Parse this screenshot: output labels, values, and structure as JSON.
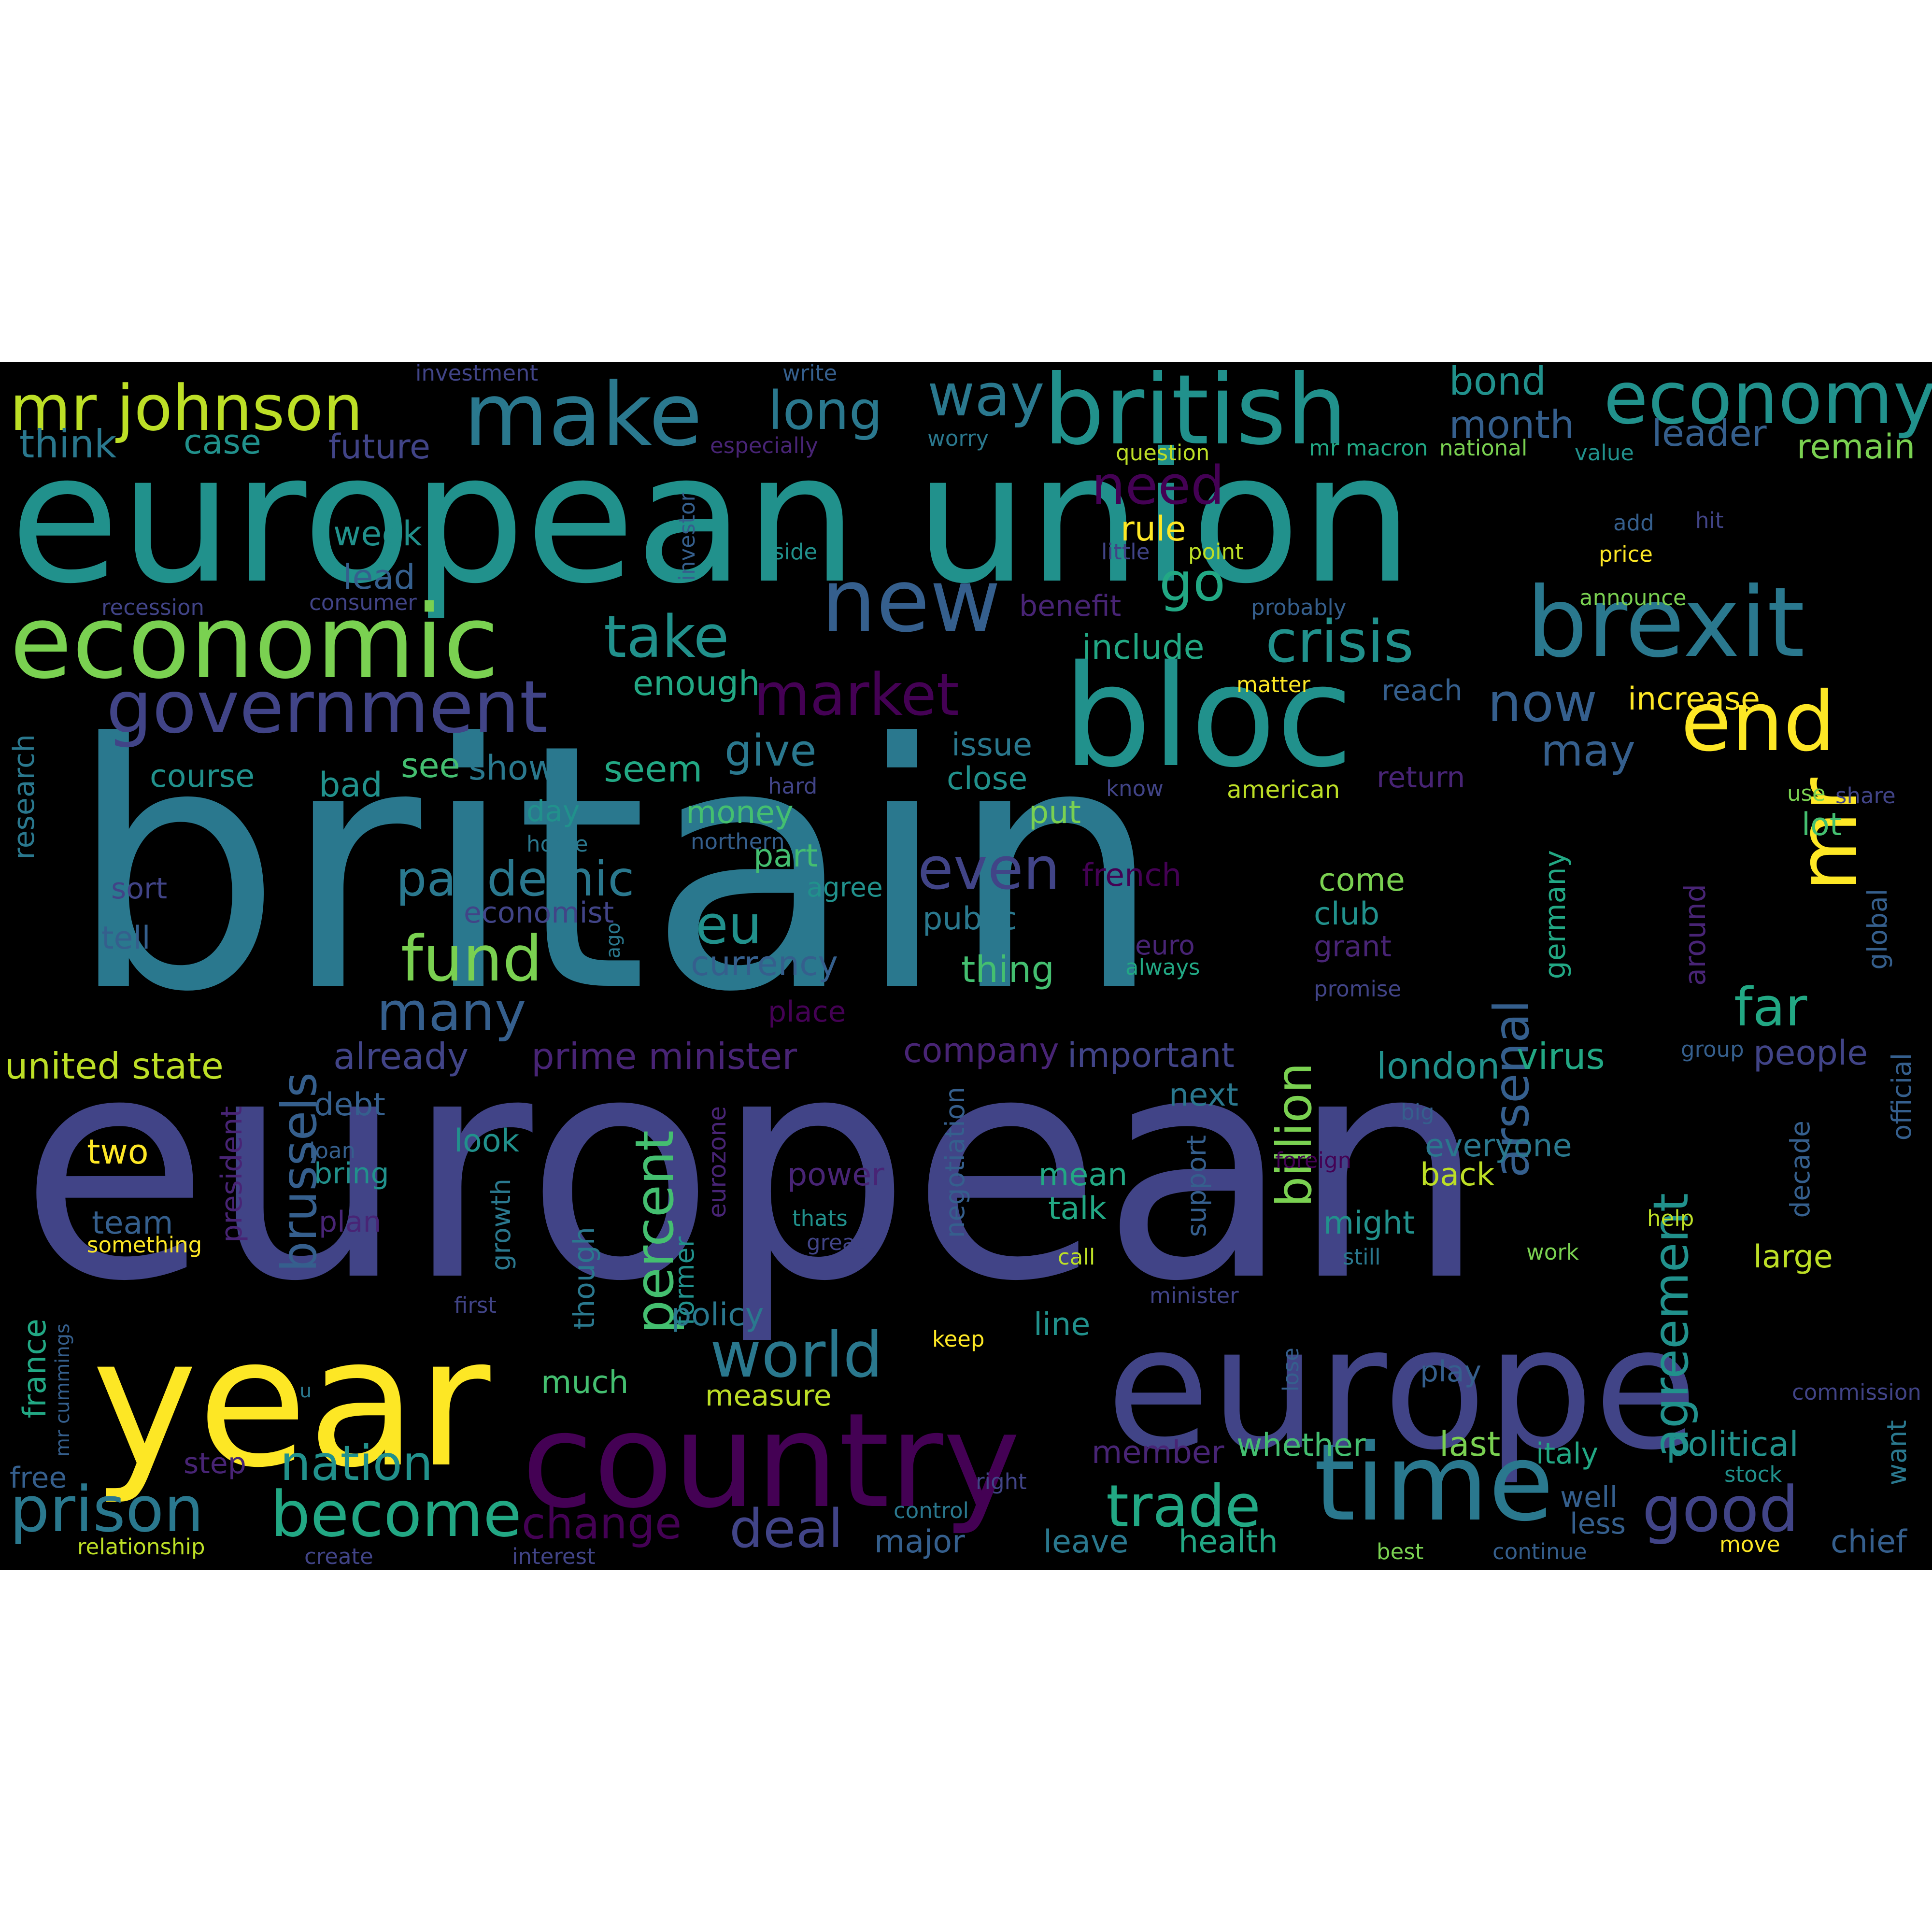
{
  "palette": {
    "background": "#000000",
    "page": "#ffffff",
    "colors": [
      "#440154",
      "#482475",
      "#414487",
      "#355f8d",
      "#2a788e",
      "#21918c",
      "#22a884",
      "#44bf70",
      "#7ad151",
      "#bddf26",
      "#fde725"
    ]
  },
  "words": [
    {
      "text": "britain",
      "c": 4
    },
    {
      "text": "european",
      "c": 2
    },
    {
      "text": "european union",
      "c": 5
    },
    {
      "text": "year",
      "c": 10
    },
    {
      "text": "europe",
      "c": 2
    },
    {
      "text": "bloc",
      "c": 5
    },
    {
      "text": "country",
      "c": 0
    },
    {
      "text": "time",
      "c": 4
    },
    {
      "text": "economic",
      "c": 8
    },
    {
      "text": "british",
      "c": 5
    },
    {
      "text": "brexit",
      "c": 4
    },
    {
      "text": "make",
      "c": 4
    },
    {
      "text": "new",
      "c": 3
    },
    {
      "text": "mr johnson",
      "c": 9
    },
    {
      "text": "economy",
      "c": 5
    },
    {
      "text": "government",
      "c": 2
    },
    {
      "text": "end",
      "c": 10
    },
    {
      "text": "mr",
      "c": 10
    },
    {
      "text": "crisis",
      "c": 5
    },
    {
      "text": "take",
      "c": 5
    },
    {
      "text": "way",
      "c": 4
    },
    {
      "text": "long",
      "c": 4
    },
    {
      "text": "market",
      "c": 0
    },
    {
      "text": "fund",
      "c": 8
    },
    {
      "text": "prison",
      "c": 4
    },
    {
      "text": "become",
      "c": 6
    },
    {
      "text": "trade",
      "c": 6
    },
    {
      "text": "world",
      "c": 4
    },
    {
      "text": "good",
      "c": 2
    },
    {
      "text": "deal",
      "c": 2
    },
    {
      "text": "nation",
      "c": 5
    },
    {
      "text": "many",
      "c": 3
    },
    {
      "text": "even",
      "c": 2
    },
    {
      "text": "eu",
      "c": 5
    },
    {
      "text": "pandemic",
      "c": 4
    },
    {
      "text": "percent",
      "c": 7
    },
    {
      "text": "brussels",
      "c": 3
    },
    {
      "text": "arsenal",
      "c": 3
    },
    {
      "text": "billion",
      "c": 8
    },
    {
      "text": "agreement",
      "c": 5
    },
    {
      "text": "now",
      "c": 3
    },
    {
      "text": "go",
      "c": 6
    },
    {
      "text": "far",
      "c": 6
    },
    {
      "text": "need",
      "c": 0
    },
    {
      "text": "give",
      "c": 4
    },
    {
      "text": "change",
      "c": 0
    },
    {
      "text": "may",
      "c": 3
    },
    {
      "text": "month",
      "c": 3
    },
    {
      "text": "bond",
      "c": 5
    },
    {
      "text": "leader",
      "c": 3
    },
    {
      "text": "remain",
      "c": 8
    },
    {
      "text": "think",
      "c": 4
    },
    {
      "text": "case",
      "c": 5
    },
    {
      "text": "future",
      "c": 2
    },
    {
      "text": "investment",
      "c": 2
    },
    {
      "text": "write",
      "c": 3
    },
    {
      "text": "especially",
      "c": 1
    },
    {
      "text": "worry",
      "c": 4
    },
    {
      "text": "question",
      "c": 9
    },
    {
      "text": "mr macron",
      "c": 6
    },
    {
      "text": "national",
      "c": 8
    },
    {
      "text": "value",
      "c": 5
    },
    {
      "text": "week",
      "c": 5
    },
    {
      "text": "lead",
      "c": 3
    },
    {
      "text": "side",
      "c": 5
    },
    {
      "text": "investor",
      "c": 3
    },
    {
      "text": "rule",
      "c": 10
    },
    {
      "text": "little",
      "c": 2
    },
    {
      "text": "point",
      "c": 9
    },
    {
      "text": "add",
      "c": 3
    },
    {
      "text": "hit",
      "c": 2
    },
    {
      "text": "price",
      "c": 10
    },
    {
      "text": "recession",
      "c": 2
    },
    {
      "text": "consumer",
      "c": 2
    },
    {
      "text": "benefit",
      "c": 1
    },
    {
      "text": "probably",
      "c": 3
    },
    {
      "text": "announce",
      "c": 8
    },
    {
      "text": "include",
      "c": 6
    },
    {
      "text": "enough",
      "c": 6
    },
    {
      "text": "matter",
      "c": 10
    },
    {
      "text": "reach",
      "c": 3
    },
    {
      "text": "increase",
      "c": 10
    },
    {
      "text": "seem",
      "c": 6
    },
    {
      "text": "course",
      "c": 5
    },
    {
      "text": "see",
      "c": 7
    },
    {
      "text": "show",
      "c": 4
    },
    {
      "text": "bad",
      "c": 5
    },
    {
      "text": "issue",
      "c": 4
    },
    {
      "text": "close",
      "c": 5
    },
    {
      "text": "hard",
      "c": 2
    },
    {
      "text": "know",
      "c": 2
    },
    {
      "text": "american",
      "c": 9
    },
    {
      "text": "return",
      "c": 1
    },
    {
      "text": "use",
      "c": 8
    },
    {
      "text": "share",
      "c": 2
    },
    {
      "text": "research",
      "c": 4
    },
    {
      "text": "day",
      "c": 5
    },
    {
      "text": "money",
      "c": 7
    },
    {
      "text": "put",
      "c": 8
    },
    {
      "text": "home",
      "c": 4
    },
    {
      "text": "northern",
      "c": 3
    },
    {
      "text": "part",
      "c": 7
    },
    {
      "text": "agree",
      "c": 5
    },
    {
      "text": "lot",
      "c": 7
    },
    {
      "text": "sort",
      "c": 2
    },
    {
      "text": "french",
      "c": 0
    },
    {
      "text": "come",
      "c": 8
    },
    {
      "text": "germany",
      "c": 6
    },
    {
      "text": "around",
      "c": 1
    },
    {
      "text": "global",
      "c": 3
    },
    {
      "text": "economist",
      "c": 2
    },
    {
      "text": "public",
      "c": 4
    },
    {
      "text": "club",
      "c": 5
    },
    {
      "text": "tell",
      "c": 3
    },
    {
      "text": "ago",
      "c": 4
    },
    {
      "text": "currency",
      "c": 3
    },
    {
      "text": "euro",
      "c": 1
    },
    {
      "text": "thing",
      "c": 7
    },
    {
      "text": "always",
      "c": 6
    },
    {
      "text": "grant",
      "c": 1
    },
    {
      "text": "promise",
      "c": 2
    },
    {
      "text": "place",
      "c": 0
    },
    {
      "text": "united state",
      "c": 9
    },
    {
      "text": "already",
      "c": 2
    },
    {
      "text": "prime minister",
      "c": 1
    },
    {
      "text": "company",
      "c": 1
    },
    {
      "text": "important",
      "c": 2
    },
    {
      "text": "london",
      "c": 5
    },
    {
      "text": "virus",
      "c": 6
    },
    {
      "text": "group",
      "c": 3
    },
    {
      "text": "people",
      "c": 2
    },
    {
      "text": "debt",
      "c": 3
    },
    {
      "text": "next",
      "c": 4
    },
    {
      "text": "big",
      "c": 3
    },
    {
      "text": "official",
      "c": 3
    },
    {
      "text": "two",
      "c": 10
    },
    {
      "text": "president",
      "c": 1
    },
    {
      "text": "loan",
      "c": 3
    },
    {
      "text": "look",
      "c": 5
    },
    {
      "text": "bring",
      "c": 5
    },
    {
      "text": "eurozone",
      "c": 1
    },
    {
      "text": "power",
      "c": 1
    },
    {
      "text": "negotiation",
      "c": 3
    },
    {
      "text": "mean",
      "c": 6
    },
    {
      "text": "talk",
      "c": 6
    },
    {
      "text": "support",
      "c": 3
    },
    {
      "text": "foreign",
      "c": 0
    },
    {
      "text": "everyone",
      "c": 4
    },
    {
      "text": "back",
      "c": 9
    },
    {
      "text": "decade",
      "c": 3
    },
    {
      "text": "team",
      "c": 3
    },
    {
      "text": "plan",
      "c": 1
    },
    {
      "text": "growth",
      "c": 4
    },
    {
      "text": "though",
      "c": 4
    },
    {
      "text": "former",
      "c": 5
    },
    {
      "text": "thats",
      "c": 5
    },
    {
      "text": "great",
      "c": 2
    },
    {
      "text": "might",
      "c": 5
    },
    {
      "text": "help",
      "c": 9
    },
    {
      "text": "something",
      "c": 10
    },
    {
      "text": "call",
      "c": 9
    },
    {
      "text": "still",
      "c": 4
    },
    {
      "text": "work",
      "c": 8
    },
    {
      "text": "large",
      "c": 9
    },
    {
      "text": "first",
      "c": 2
    },
    {
      "text": "minister",
      "c": 2
    },
    {
      "text": "policy",
      "c": 4
    },
    {
      "text": "line",
      "c": 5
    },
    {
      "text": "france",
      "c": 6
    },
    {
      "text": "mr cummings",
      "c": 3
    },
    {
      "text": "keep",
      "c": 10
    },
    {
      "text": "much",
      "c": 7
    },
    {
      "text": "u",
      "c": 4
    },
    {
      "text": "lose",
      "c": 3
    },
    {
      "text": "measure",
      "c": 9
    },
    {
      "text": "play",
      "c": 3
    },
    {
      "text": "commission",
      "c": 2
    },
    {
      "text": "step",
      "c": 1
    },
    {
      "text": "member",
      "c": 1
    },
    {
      "text": "whether",
      "c": 7
    },
    {
      "text": "last",
      "c": 8
    },
    {
      "text": "italy",
      "c": 6
    },
    {
      "text": "political",
      "c": 5
    },
    {
      "text": "free",
      "c": 3
    },
    {
      "text": "right",
      "c": 2
    },
    {
      "text": "stock",
      "c": 5
    },
    {
      "text": "want",
      "c": 4
    },
    {
      "text": "control",
      "c": 4
    },
    {
      "text": "well",
      "c": 3
    },
    {
      "text": "less",
      "c": 3
    },
    {
      "text": "major",
      "c": 3
    },
    {
      "text": "chief",
      "c": 3
    },
    {
      "text": "relationship",
      "c": 9
    },
    {
      "text": "create",
      "c": 2
    },
    {
      "text": "interest",
      "c": 2
    },
    {
      "text": "leave",
      "c": 4
    },
    {
      "text": "health",
      "c": 6
    },
    {
      "text": "best",
      "c": 8
    },
    {
      "text": "continue",
      "c": 3
    },
    {
      "text": "move",
      "c": 10
    }
  ]
}
